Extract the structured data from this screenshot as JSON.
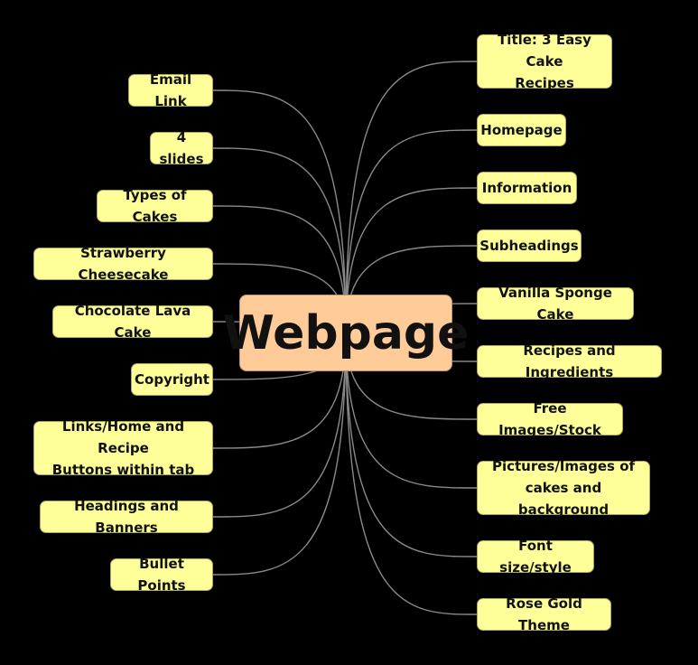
{
  "center": {
    "label": "Webpage"
  },
  "left_nodes": [
    {
      "label": "Email Link"
    },
    {
      "label": "4 slides"
    },
    {
      "label": "Types of Cakes"
    },
    {
      "label": "Strawberry Cheesecake"
    },
    {
      "label": "Chocolate Lava Cake"
    },
    {
      "label": "Copyright"
    },
    {
      "label": "Links/Home and Recipe\nButtons within tab"
    },
    {
      "label": "Headings and Banners"
    },
    {
      "label": "Bullet Points"
    }
  ],
  "right_nodes": [
    {
      "label": "Title: 3 Easy Cake\nRecipes"
    },
    {
      "label": "Homepage"
    },
    {
      "label": "Information"
    },
    {
      "label": "Subheadings"
    },
    {
      "label": "Vanilla Sponge Cake"
    },
    {
      "label": "Recipes and Ingredients"
    },
    {
      "label": "Free Images/Stock"
    },
    {
      "label": "Pictures/Images of\ncakes and background"
    },
    {
      "label": "Font size/style"
    },
    {
      "label": "Rose Gold Theme"
    }
  ],
  "colors": {
    "background": "#000000",
    "node_fill": "#ffff99",
    "center_fill": "#ffcc99",
    "connector": "#8a8a8a"
  }
}
